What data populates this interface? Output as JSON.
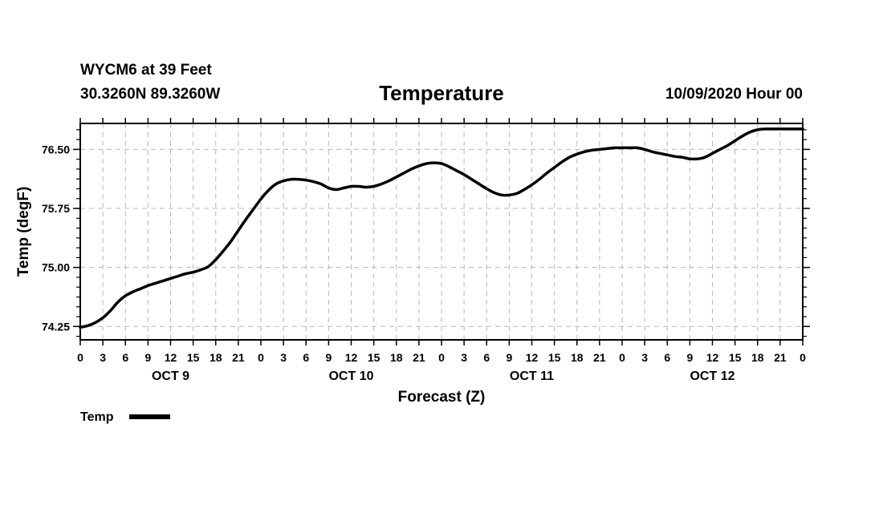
{
  "header": {
    "station": "WYCM6 at 39 Feet",
    "coords": "30.3260N 89.3260W",
    "runtime": "10/09/2020 Hour 00"
  },
  "chart_data": {
    "type": "line",
    "title": "Temperature",
    "xlabel": "Forecast (Z)",
    "ylabel": "Temp (degF)",
    "xlim": [
      0,
      96
    ],
    "ylim": [
      74.08,
      76.83
    ],
    "yticks": [
      74.25,
      75.0,
      75.75,
      76.5
    ],
    "ytick_labels": [
      "74.25",
      "75.00",
      "75.75",
      "76.50"
    ],
    "xticks_hours": [
      0,
      3,
      6,
      9,
      12,
      15,
      18,
      21,
      24,
      27,
      30,
      33,
      36,
      39,
      42,
      45,
      48,
      51,
      54,
      57,
      60,
      63,
      66,
      69,
      72,
      75,
      78,
      81,
      84,
      87,
      90,
      93,
      96
    ],
    "xtick_labels": [
      "0",
      "3",
      "6",
      "9",
      "12",
      "15",
      "18",
      "21",
      "0",
      "3",
      "6",
      "9",
      "12",
      "15",
      "18",
      "21",
      "0",
      "3",
      "6",
      "9",
      "12",
      "15",
      "18",
      "21",
      "0",
      "3",
      "6",
      "9",
      "12",
      "15",
      "18",
      "21",
      "0"
    ],
    "day_labels": [
      {
        "label": "OCT 9",
        "hour": 12
      },
      {
        "label": "OCT 10",
        "hour": 36
      },
      {
        "label": "OCT 11",
        "hour": 60
      },
      {
        "label": "OCT 12",
        "hour": 84
      }
    ],
    "grid": true,
    "legend_position": "bottom-left",
    "series": [
      {
        "name": "Temp",
        "color": "#000000",
        "x": [
          0,
          1,
          2,
          3,
          4,
          5,
          6,
          7,
          8,
          9,
          10,
          11,
          12,
          13,
          14,
          15,
          16,
          17,
          18,
          19,
          20,
          21,
          22,
          23,
          24,
          25,
          26,
          27,
          28,
          29,
          30,
          31,
          32,
          33,
          34,
          35,
          36,
          37,
          38,
          39,
          40,
          41,
          42,
          43,
          44,
          45,
          46,
          47,
          48,
          49,
          50,
          51,
          52,
          53,
          54,
          55,
          56,
          57,
          58,
          59,
          60,
          61,
          62,
          63,
          64,
          65,
          66,
          67,
          68,
          69,
          70,
          71,
          72,
          73,
          74,
          75,
          76,
          77,
          78,
          79,
          80,
          81,
          82,
          83,
          84,
          85,
          86,
          87,
          88,
          89,
          90,
          91,
          92,
          93,
          94,
          95,
          96
        ],
        "values": [
          74.24,
          74.26,
          74.3,
          74.36,
          74.45,
          74.56,
          74.64,
          74.69,
          74.73,
          74.77,
          74.8,
          74.83,
          74.86,
          74.89,
          74.92,
          74.94,
          74.97,
          75.01,
          75.1,
          75.21,
          75.33,
          75.47,
          75.61,
          75.74,
          75.87,
          75.98,
          76.06,
          76.1,
          76.12,
          76.12,
          76.11,
          76.09,
          76.06,
          76.01,
          75.99,
          76.01,
          76.03,
          76.03,
          76.02,
          76.03,
          76.06,
          76.1,
          76.15,
          76.2,
          76.25,
          76.29,
          76.32,
          76.33,
          76.32,
          76.28,
          76.23,
          76.18,
          76.12,
          76.06,
          76.0,
          75.95,
          75.92,
          75.92,
          75.94,
          75.99,
          76.05,
          76.12,
          76.2,
          76.27,
          76.34,
          76.4,
          76.44,
          76.47,
          76.49,
          76.5,
          76.51,
          76.52,
          76.52,
          76.52,
          76.52,
          76.5,
          76.47,
          76.45,
          76.43,
          76.41,
          76.4,
          76.38,
          76.38,
          76.4,
          76.45,
          76.5,
          76.55,
          76.61,
          76.67,
          76.72,
          76.75,
          76.76,
          76.76,
          76.76,
          76.76,
          76.76,
          76.76
        ]
      }
    ]
  }
}
